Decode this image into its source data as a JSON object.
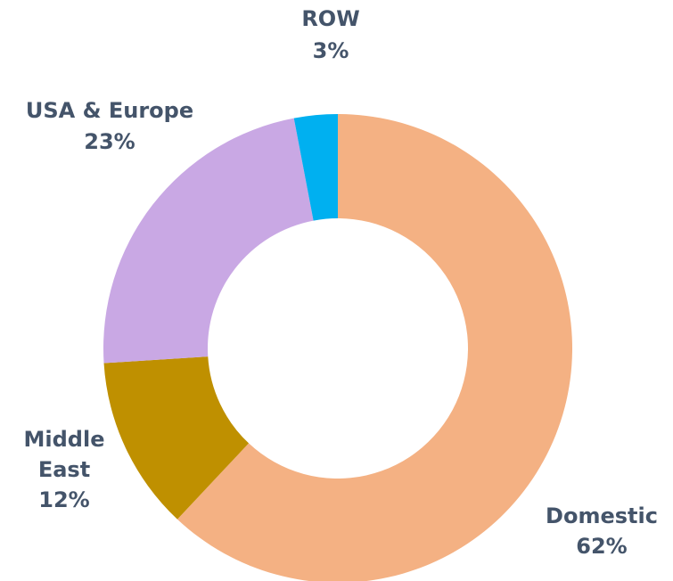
{
  "chart_data": {
    "type": "donut",
    "categories": [
      "Domestic",
      "Middle East",
      "USA & Europe",
      "ROW"
    ],
    "values": [
      62,
      12,
      23,
      3
    ],
    "value_labels": [
      "62%",
      "12%",
      "23%",
      "3%"
    ],
    "colors": [
      "#F4B183",
      "#BF9000",
      "#C9A8E4",
      "#00B0F0"
    ]
  }
}
